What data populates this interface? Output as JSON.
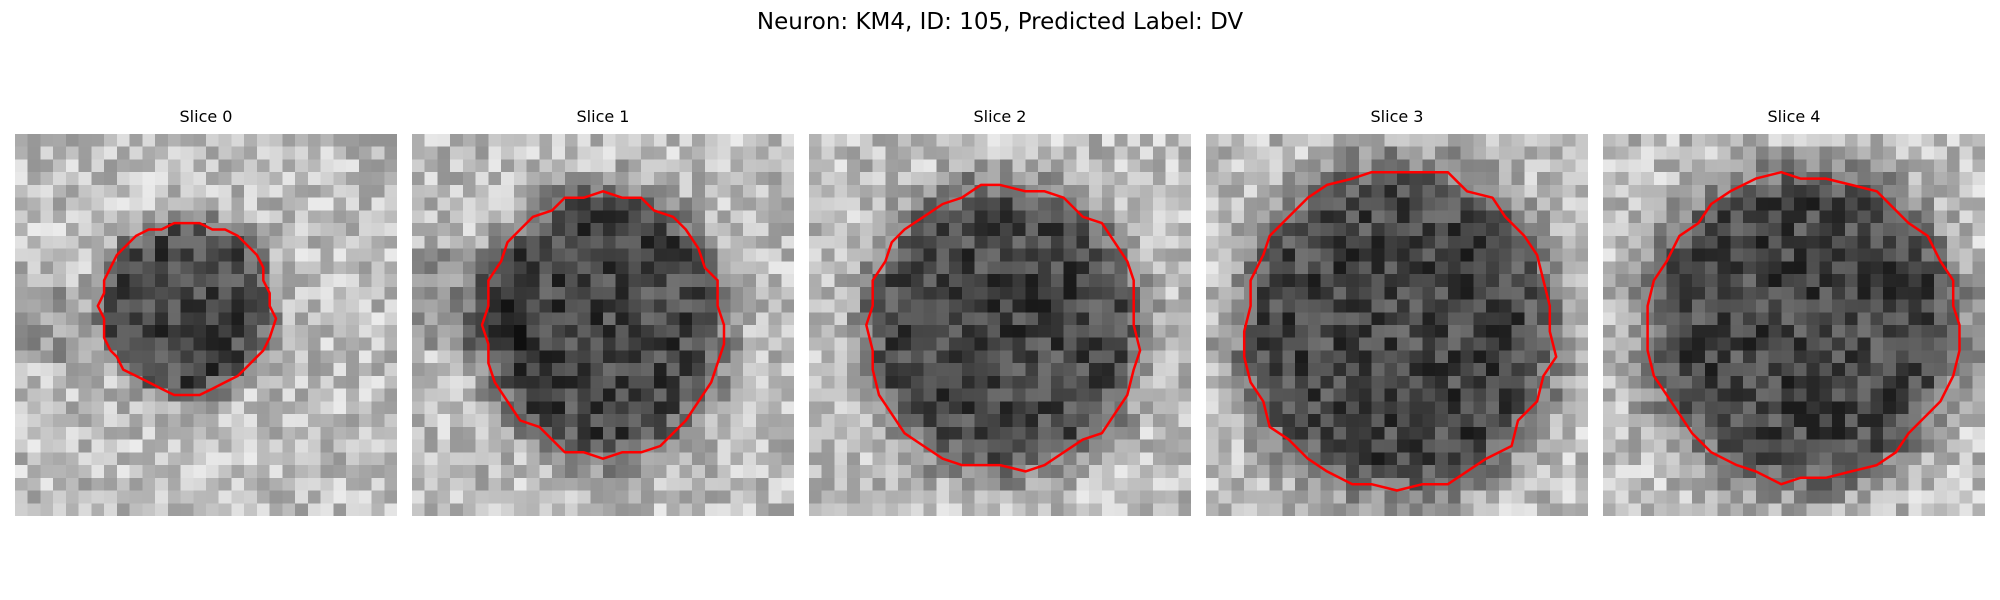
{
  "figure": {
    "title": "Neuron: KM4, ID: 105, Predicted Label: DV",
    "contour_color": "#ff0000"
  },
  "slices": [
    {
      "label": "Slice 0"
    },
    {
      "label": "Slice 1"
    },
    {
      "label": "Slice 2"
    },
    {
      "label": "Slice 3"
    },
    {
      "label": "Slice 4"
    }
  ]
}
